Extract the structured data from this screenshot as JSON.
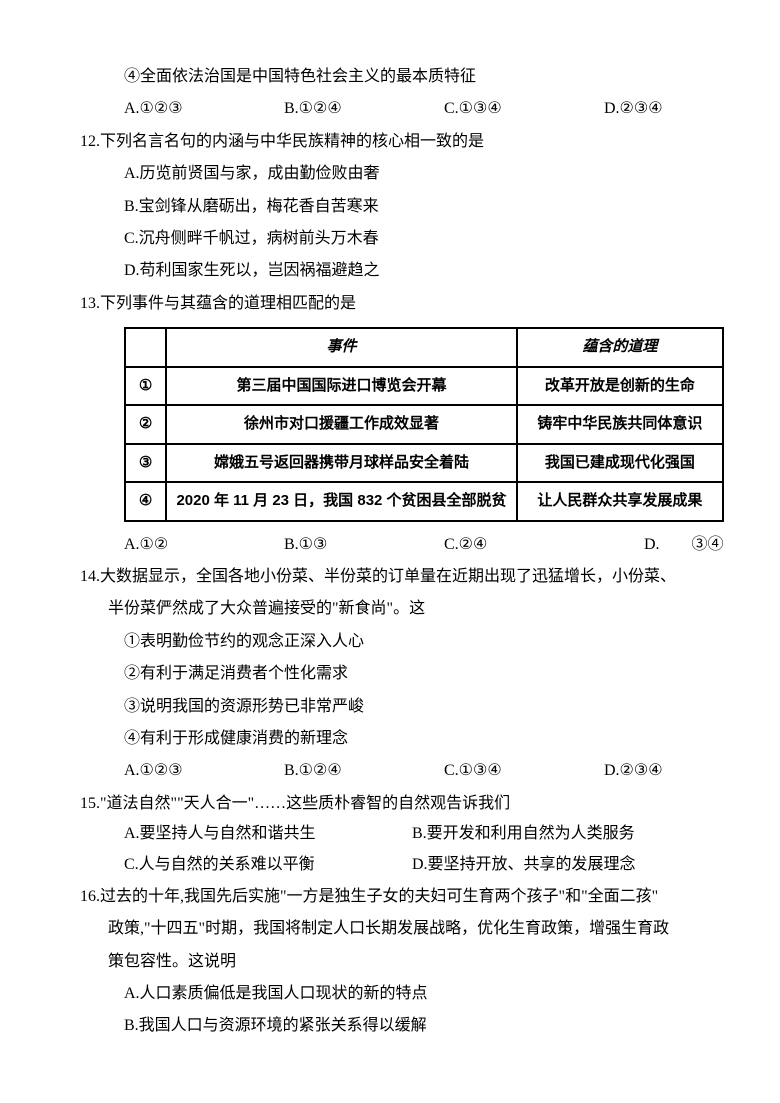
{
  "q11_tail": {
    "stmt4": "④全面依法治国是中国特色社会主义的最本质特征",
    "opts": {
      "a": "A.①②③",
      "b": "B.①②④",
      "c": "C.①③④",
      "d": "D.②③④"
    }
  },
  "q12": {
    "stem": "12.下列名言名句的内涵与中华民族精神的核心相一致的是",
    "a": "A.历览前贤国与家，成由勤俭败由奢",
    "b": "B.宝剑锋从磨砺出，梅花香自苦寒来",
    "c": "C.沉舟侧畔千帆过，病树前头万木春",
    "d": "D.苟利国家生死以，岂因祸福避趋之"
  },
  "q13": {
    "stem": "13.下列事件与其蕴含的道理相匹配的是",
    "table": {
      "head_event": "事件",
      "head_reason": "蕴含的道理",
      "rows": [
        {
          "n": "①",
          "event": "第三届中国国际进口博览会开幕",
          "reason": "改革开放是创新的生命"
        },
        {
          "n": "②",
          "event": "徐州市对口援疆工作成效显著",
          "reason": "铸牢中华民族共同体意识"
        },
        {
          "n": "③",
          "event": "嫦娥五号返回器携带月球样品安全着陆",
          "reason": "我国已建成现代化强国"
        },
        {
          "n": "④",
          "event": "2020 年 11 月 23 日，我国 832 个贫困县全部脱贫",
          "reason": "让人民群众共享发展成果"
        }
      ]
    },
    "opts": {
      "a": "A.①②",
      "b": "B.①③",
      "c": "C.②④",
      "d": "D.　　③④"
    }
  },
  "q14": {
    "stem1": "14.大数据显示，全国各地小份菜、半份菜的订单量在近期出现了迅猛增长，小份菜、",
    "stem2": "半份菜俨然成了大众普遍接受的\"新食尚\"。这",
    "s1": "①表明勤俭节约的观念正深入人心",
    "s2": "②有利于满足消费者个性化需求",
    "s3": "③说明我国的资源形势已非常严峻",
    "s4": "④有利于形成健康消费的新理念",
    "opts": {
      "a": "A.①②③",
      "b": "B.①②④",
      "c": "C.①③④",
      "d": "D.②③④"
    }
  },
  "q15": {
    "stem": "15.\"道法自然\"\"天人合一\"……这些质朴睿智的自然观告诉我们",
    "a": "A.要坚持人与自然和谐共生",
    "b": "B.要开发和利用自然为人类服务",
    "c": "C.人与自然的关系难以平衡",
    "d": "D.要坚持开放、共享的发展理念"
  },
  "q16": {
    "stem1": "16.过去的十年,我国先后实施\"一方是独生子女的夫妇可生育两个孩子\"和\"全面二孩\"",
    "stem2": "政策,\"十四五\"时期，我国将制定人口长期发展战略，优化生育政策，增强生育政",
    "stem3": "策包容性。这说明",
    "a": "A.人口素质偏低是我国人口现状的新的特点",
    "b": "B.我国人口与资源环境的紧张关系得以缓解"
  }
}
